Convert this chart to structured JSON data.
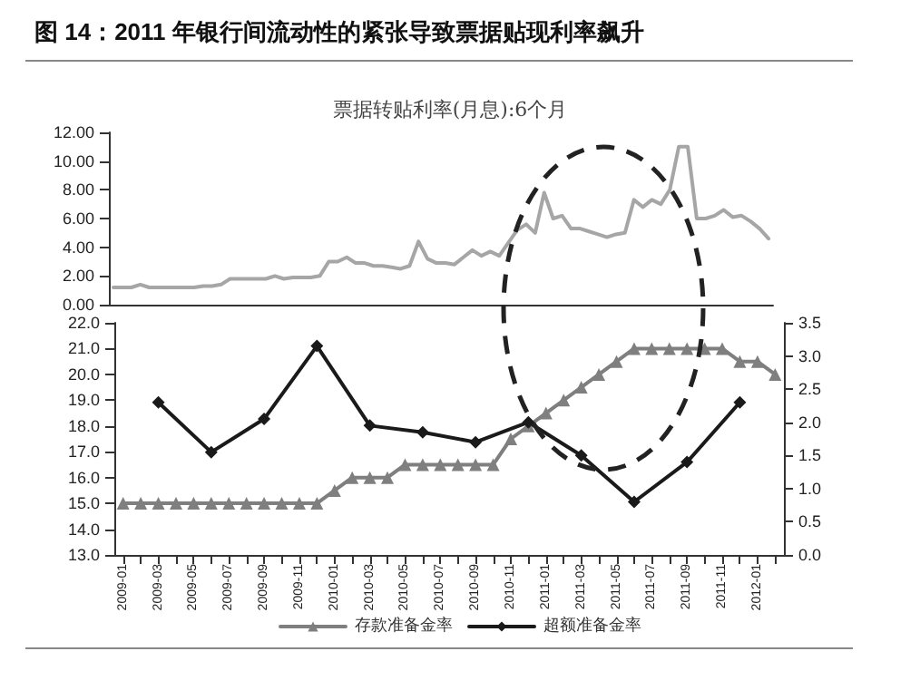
{
  "chart_data": [
    {
      "type": "line",
      "title": "图 14：2011 年银行间流动性的紧张导致票据贴现利率飙升",
      "subtitle": "票据转贴利率(月息):6个月",
      "categories": [
        null,
        null,
        null,
        null,
        null,
        null,
        null,
        null,
        null,
        null,
        null,
        null,
        null,
        null,
        null,
        null,
        null,
        null,
        null,
        null,
        null,
        null,
        null,
        null,
        null,
        null,
        null,
        null,
        null,
        null,
        null,
        null,
        null,
        null,
        null,
        null,
        null,
        null,
        null,
        null,
        null,
        null,
        null,
        null,
        null,
        null,
        null,
        null,
        null,
        null,
        null,
        null,
        null,
        null,
        null,
        null,
        null,
        null,
        null,
        null,
        null,
        null,
        null,
        null,
        null,
        null,
        null,
        null,
        null,
        null,
        null,
        null,
        null,
        null
      ],
      "series": [
        {
          "color": "#a6a6a6",
          "values": [
            1.2,
            1.2,
            1.2,
            1.4,
            1.2,
            1.2,
            1.2,
            1.2,
            1.2,
            1.2,
            1.3,
            1.3,
            1.4,
            1.8,
            1.8,
            1.8,
            1.8,
            1.8,
            2.0,
            1.8,
            1.9,
            1.9,
            1.9,
            2.0,
            3.0,
            3.0,
            3.3,
            2.9,
            2.9,
            2.7,
            2.7,
            2.6,
            2.5,
            2.7,
            4.4,
            3.2,
            2.9,
            2.9,
            2.8,
            3.3,
            3.8,
            3.4,
            3.7,
            3.4,
            4.3,
            5.2,
            5.6,
            5.0,
            7.8,
            6.0,
            6.2,
            5.3,
            5.3,
            5.1,
            4.9,
            4.7,
            4.9,
            5.0,
            7.3,
            6.8,
            7.3,
            7.0,
            8.0,
            11.0,
            11.0,
            6.0,
            6.0,
            6.2,
            6.6,
            6.1,
            6.2,
            5.8,
            5.3,
            4.6
          ]
        }
      ],
      "ylim": [
        0,
        12
      ],
      "yticks": [
        {
          "value": 0,
          "label": "0.00"
        },
        {
          "value": 2,
          "label": "2.00"
        },
        {
          "value": 4,
          "label": "4.00"
        },
        {
          "value": 6,
          "label": "6.00"
        },
        {
          "value": 8,
          "label": "8.00"
        },
        {
          "value": 10,
          "label": "10.00"
        },
        {
          "value": 12,
          "label": "12.00"
        }
      ],
      "tick_labels": "y",
      "line_style": "solid"
    },
    {
      "type": "line",
      "categories": [
        "2009-01",
        null,
        "2009-03",
        null,
        "2009-05",
        null,
        "2009-07",
        null,
        "2009-09",
        null,
        "2009-11",
        null,
        "2010-01",
        null,
        "2010-03",
        null,
        "2010-05",
        null,
        "2010-07",
        null,
        "2010-09",
        null,
        "2010-11",
        null,
        "2011-01",
        null,
        "2011-03",
        null,
        "2011-05",
        null,
        "2011-07",
        null,
        "2011-09",
        null,
        "2011-11",
        null,
        "2012-01",
        null
      ],
      "series": [
        {
          "name": "存款准备金率",
          "color": "#7f7f7f",
          "marker": "triangle",
          "values": [
            15.0,
            15.0,
            15.0,
            15.0,
            15.0,
            15.0,
            15.0,
            15.0,
            15.0,
            15.0,
            15.0,
            15.0,
            15.5,
            16.0,
            16.0,
            16.0,
            16.5,
            16.5,
            16.5,
            16.5,
            16.5,
            16.5,
            17.5,
            18.0,
            18.5,
            19.0,
            19.5,
            20.0,
            20.5,
            21.0,
            21.0,
            21.0,
            21.0,
            21.0,
            21.0,
            20.5,
            20.5,
            20.0
          ]
        },
        {
          "name": "超额准备金率",
          "color": "#1a1a1a",
          "marker": "diamond",
          "axis": "y2",
          "values": [
            null,
            null,
            2.3,
            null,
            null,
            1.55,
            null,
            null,
            2.05,
            null,
            null,
            3.15,
            null,
            null,
            1.95,
            null,
            null,
            1.85,
            null,
            null,
            1.7,
            null,
            null,
            2.0,
            null,
            null,
            1.5,
            null,
            null,
            0.8,
            null,
            null,
            1.4,
            null,
            null,
            2.3,
            null,
            null
          ]
        }
      ],
      "ylim": [
        13,
        22
      ],
      "yticks": [
        {
          "value": 13,
          "label": "13.0"
        },
        {
          "value": 14,
          "label": "14.0"
        },
        {
          "value": 15,
          "label": "15.0"
        },
        {
          "value": 16,
          "label": "16.0"
        },
        {
          "value": 17,
          "label": "17.0"
        },
        {
          "value": 18,
          "label": "18.0"
        },
        {
          "value": 19,
          "label": "19.0"
        },
        {
          "value": 20,
          "label": "20.0"
        },
        {
          "value": 21,
          "label": "21.0"
        },
        {
          "value": 22,
          "label": "22.0"
        }
      ],
      "y2lim": [
        0,
        3.5
      ],
      "y2ticks": [
        {
          "value": 0,
          "label": "0.0"
        },
        {
          "value": 0.5,
          "label": "0.5"
        },
        {
          "value": 1,
          "label": "1.0"
        },
        {
          "value": 1.5,
          "label": "1.5"
        },
        {
          "value": 2,
          "label": "2.0"
        },
        {
          "value": 2.5,
          "label": "2.5"
        },
        {
          "value": 3,
          "label": "3.0"
        },
        {
          "value": 3.5,
          "label": "3.5"
        }
      ],
      "legend": "bottom",
      "line_style": "solid"
    }
  ]
}
